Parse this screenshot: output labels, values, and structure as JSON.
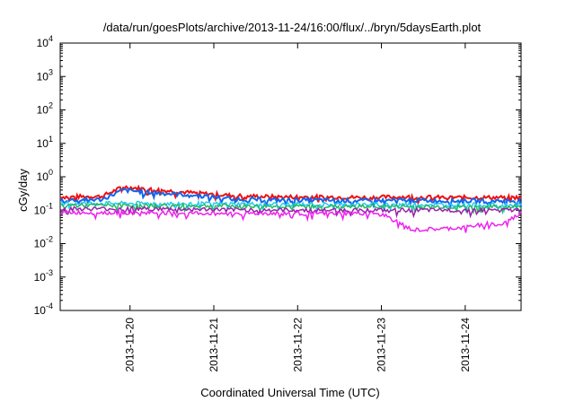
{
  "chart_data": {
    "type": "line",
    "title": "/data/run/goesPlots/archive/2013-11-24/16:00/flux/../bryn/5daysEarth.plot",
    "xlabel": "Coordinated Universal Time (UTC)",
    "ylabel": "cGy/day",
    "yscale": "log",
    "ylim": [
      0.0001,
      10000
    ],
    "xlim": [
      "2013-11-19 04:00",
      "2013-11-24 16:00"
    ],
    "grid": false,
    "legend": "none",
    "y_ticks": [
      {
        "base": "10",
        "exp": "-4"
      },
      {
        "base": "10",
        "exp": "-3"
      },
      {
        "base": "10",
        "exp": "-2"
      },
      {
        "base": "10",
        "exp": "-1"
      },
      {
        "base": "10",
        "exp": "0"
      },
      {
        "base": "10",
        "exp": "1"
      },
      {
        "base": "10",
        "exp": "2"
      },
      {
        "base": "10",
        "exp": "3"
      },
      {
        "base": "10",
        "exp": "4"
      }
    ],
    "x_ticks": [
      {
        "value": "2013-11-20 00:00",
        "label": "2013-11-20"
      },
      {
        "value": "2013-11-21 00:00",
        "label": "2013-11-21"
      },
      {
        "value": "2013-11-22 00:00",
        "label": "2013-11-22"
      },
      {
        "value": "2013-11-23 00:00",
        "label": "2013-11-23"
      },
      {
        "value": "2013-11-24 00:00",
        "label": "2013-11-24"
      }
    ],
    "series": [
      {
        "color": "#ee1111",
        "x": [
          "2013-11-19 04:00",
          "2013-11-19 16:00",
          "2013-11-19 22:00",
          "2013-11-20 06:00",
          "2013-11-20 18:00",
          "2013-11-21 06:00",
          "2013-11-21 18:00",
          "2013-11-22 06:00",
          "2013-11-22 18:00",
          "2013-11-23 06:00",
          "2013-11-23 18:00",
          "2013-11-24 06:00",
          "2013-11-24 16:00"
        ],
        "values": [
          0.25,
          0.26,
          0.5,
          0.42,
          0.33,
          0.27,
          0.25,
          0.25,
          0.24,
          0.25,
          0.24,
          0.24,
          0.24
        ]
      },
      {
        "color": "#1166ee",
        "x": [
          "2013-11-19 04:00",
          "2013-11-19 16:00",
          "2013-11-19 22:00",
          "2013-11-20 06:00",
          "2013-11-20 18:00",
          "2013-11-21 06:00",
          "2013-11-21 18:00",
          "2013-11-22 06:00",
          "2013-11-22 18:00",
          "2013-11-23 06:00",
          "2013-11-23 18:00",
          "2013-11-24 06:00",
          "2013-11-24 16:00"
        ],
        "values": [
          0.2,
          0.21,
          0.4,
          0.34,
          0.28,
          0.22,
          0.2,
          0.2,
          0.19,
          0.2,
          0.19,
          0.19,
          0.19
        ]
      },
      {
        "color": "#22ccee",
        "x": [
          "2013-11-19 04:00",
          "2013-11-20 00:00",
          "2013-11-21 00:00",
          "2013-11-22 00:00",
          "2013-11-23 00:00",
          "2013-11-24 00:00",
          "2013-11-24 16:00"
        ],
        "values": [
          0.16,
          0.16,
          0.155,
          0.15,
          0.15,
          0.145,
          0.145
        ]
      },
      {
        "color": "#22bb66",
        "x": [
          "2013-11-19 04:00",
          "2013-11-20 00:00",
          "2013-11-21 00:00",
          "2013-11-22 00:00",
          "2013-11-23 00:00",
          "2013-11-24 00:00",
          "2013-11-24 16:00"
        ],
        "values": [
          0.14,
          0.14,
          0.135,
          0.13,
          0.13,
          0.125,
          0.125
        ]
      },
      {
        "color": "#9922aa",
        "x": [
          "2013-11-19 04:00",
          "2013-11-20 00:00",
          "2013-11-21 00:00",
          "2013-11-22 00:00",
          "2013-11-23 00:00",
          "2013-11-24 00:00",
          "2013-11-24 16:00"
        ],
        "values": [
          0.11,
          0.11,
          0.105,
          0.1,
          0.1,
          0.1,
          0.1
        ]
      },
      {
        "color": "#ee22ee",
        "x": [
          "2013-11-19 04:00",
          "2013-11-20 00:00",
          "2013-11-21 00:00",
          "2013-11-22 00:00",
          "2013-11-23 00:00",
          "2013-11-23 09:00",
          "2013-11-24 00:00",
          "2013-11-24 06:00",
          "2013-11-24 10:00",
          "2013-11-24 16:00"
        ],
        "values": [
          0.085,
          0.085,
          0.08,
          0.08,
          0.08,
          0.025,
          0.03,
          0.04,
          0.035,
          0.08
        ]
      }
    ]
  }
}
